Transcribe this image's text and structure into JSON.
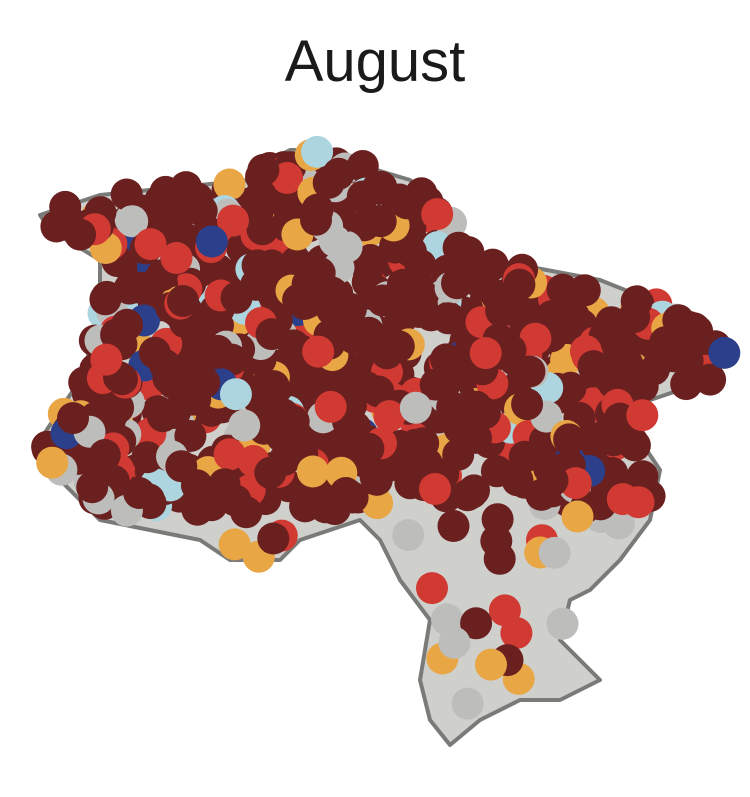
{
  "title": "August",
  "colors": {
    "land": "#cfcfcc",
    "border": "#7a7a78",
    "dot_dark_red": "#6b2020",
    "dot_red": "#d13a33",
    "dot_orange": "#e9a645",
    "dot_gray": "#bdbdbb",
    "dot_light_blue": "#add5df",
    "dot_navy": "#2b3f8a"
  }
}
